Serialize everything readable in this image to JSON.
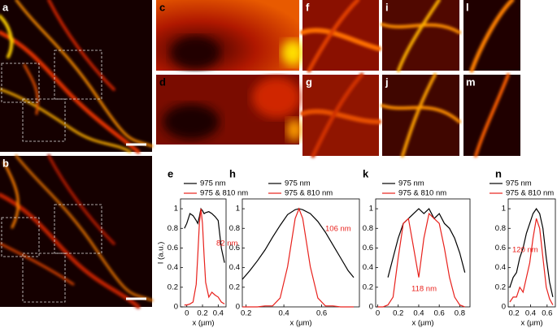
{
  "panels": [
    "a",
    "b",
    "c",
    "d",
    "f",
    "g",
    "i",
    "j",
    "l",
    "m"
  ],
  "chart_data": [
    {
      "type": "line",
      "label": "e",
      "xlabel": "x (µm)",
      "ylabel": "I (a.u.)",
      "annotation": "82 nm",
      "x": [
        -0.03,
        0.0,
        0.04,
        0.08,
        0.12,
        0.14,
        0.16,
        0.18,
        0.2,
        0.22,
        0.24,
        0.28,
        0.32,
        0.36,
        0.4,
        0.44,
        0.48
      ],
      "series": [
        {
          "name": "975 nm",
          "color": "#000000",
          "values": [
            0.8,
            0.85,
            0.95,
            0.93,
            0.88,
            0.85,
            0.92,
            1.0,
            0.98,
            0.95,
            0.96,
            0.97,
            0.95,
            0.92,
            0.88,
            0.6,
            0.45
          ]
        },
        {
          "name": "975 & 810 nm",
          "color": "#e8211c",
          "values": [
            0.02,
            0.02,
            0.03,
            0.05,
            0.23,
            0.52,
            0.85,
            1.0,
            0.85,
            0.52,
            0.25,
            0.1,
            0.15,
            0.12,
            0.1,
            0.05,
            0.03
          ]
        }
      ],
      "xlim": [
        -0.08,
        0.5
      ],
      "ylim": [
        0,
        1.1
      ],
      "xticks": [
        0,
        0.2,
        0.4
      ],
      "yticks": [
        0,
        0.2,
        0.4,
        0.6,
        0.8,
        1
      ]
    },
    {
      "type": "line",
      "label": "h",
      "xlabel": "x (µm)",
      "annotation": "106 nm",
      "x": [
        0.18,
        0.22,
        0.26,
        0.3,
        0.34,
        0.38,
        0.42,
        0.46,
        0.48,
        0.5,
        0.54,
        0.58,
        0.62,
        0.66,
        0.7,
        0.74,
        0.77
      ],
      "series": [
        {
          "name": "975 nm",
          "color": "#000000",
          "values": [
            0.28,
            0.37,
            0.47,
            0.58,
            0.71,
            0.83,
            0.94,
            0.99,
            1.0,
            0.99,
            0.95,
            0.87,
            0.76,
            0.63,
            0.5,
            0.37,
            0.3
          ]
        },
        {
          "name": "975 & 810 nm",
          "color": "#e8211c",
          "values": [
            0,
            0,
            0,
            0.01,
            0.01,
            0.09,
            0.41,
            0.9,
            1.0,
            0.9,
            0.41,
            0.09,
            0.01,
            0.01,
            0,
            0,
            0
          ]
        }
      ],
      "xlim": [
        0.18,
        0.8
      ],
      "ylim": [
        0,
        1.1
      ],
      "xticks": [
        0.2,
        0.4,
        0.6
      ],
      "yticks": [
        0,
        0.2,
        0.4,
        0.6,
        0.8,
        1
      ]
    },
    {
      "type": "line",
      "label": "k",
      "xlabel": "x (µm)",
      "annotation": "118 nm",
      "x": [
        0,
        0.05,
        0.1,
        0.15,
        0.2,
        0.25,
        0.3,
        0.35,
        0.4,
        0.45,
        0.5,
        0.55,
        0.6,
        0.65,
        0.7,
        0.75,
        0.8,
        0.85
      ],
      "series": [
        {
          "name": "975 nm",
          "color": "#000000",
          "values": [
            null,
            null,
            0.3,
            0.5,
            0.7,
            0.85,
            0.9,
            0.95,
            1.0,
            0.95,
            1.0,
            0.9,
            0.95,
            0.85,
            0.8,
            0.7,
            0.55,
            0.35
          ]
        },
        {
          "name": "975 & 810 nm",
          "color": "#e8211c",
          "values": [
            0,
            0,
            0.02,
            0.1,
            0.5,
            0.85,
            0.9,
            0.6,
            0.3,
            0.7,
            0.95,
            0.9,
            0.85,
            0.6,
            0.3,
            0.1,
            0.02,
            0
          ]
        }
      ],
      "xlim": [
        -0.02,
        0.9
      ],
      "ylim": [
        0,
        1.1
      ],
      "xticks": [
        0,
        0.2,
        0.4,
        0.6,
        0.8
      ],
      "yticks": [
        0,
        0.2,
        0.4,
        0.6,
        0.8,
        1
      ]
    },
    {
      "type": "line",
      "label": "n",
      "xlabel": "x (µm)",
      "annotation": "120 nm",
      "x": [
        0.15,
        0.19,
        0.23,
        0.27,
        0.31,
        0.35,
        0.39,
        0.43,
        0.47,
        0.51,
        0.55,
        0.59,
        0.63,
        0.67
      ],
      "series": [
        {
          "name": "975 nm",
          "color": "#000000",
          "values": [
            0.2,
            0.3,
            0.35,
            0.5,
            0.6,
            0.75,
            0.85,
            0.95,
            1.0,
            0.95,
            0.8,
            0.5,
            0.25,
            0.1
          ]
        },
        {
          "name": "975 & 810 nm",
          "color": "#e8211c",
          "values": [
            0.05,
            0.1,
            0.1,
            0.2,
            0.15,
            0.3,
            0.45,
            0.7,
            0.9,
            0.8,
            0.5,
            0.2,
            0.08,
            0.02
          ]
        }
      ],
      "xlim": [
        0.13,
        0.7
      ],
      "ylim": [
        0,
        1.1
      ],
      "xticks": [
        0.2,
        0.4,
        0.6
      ],
      "yticks": [
        0,
        0.2,
        0.4,
        0.6,
        0.8,
        1
      ]
    }
  ]
}
